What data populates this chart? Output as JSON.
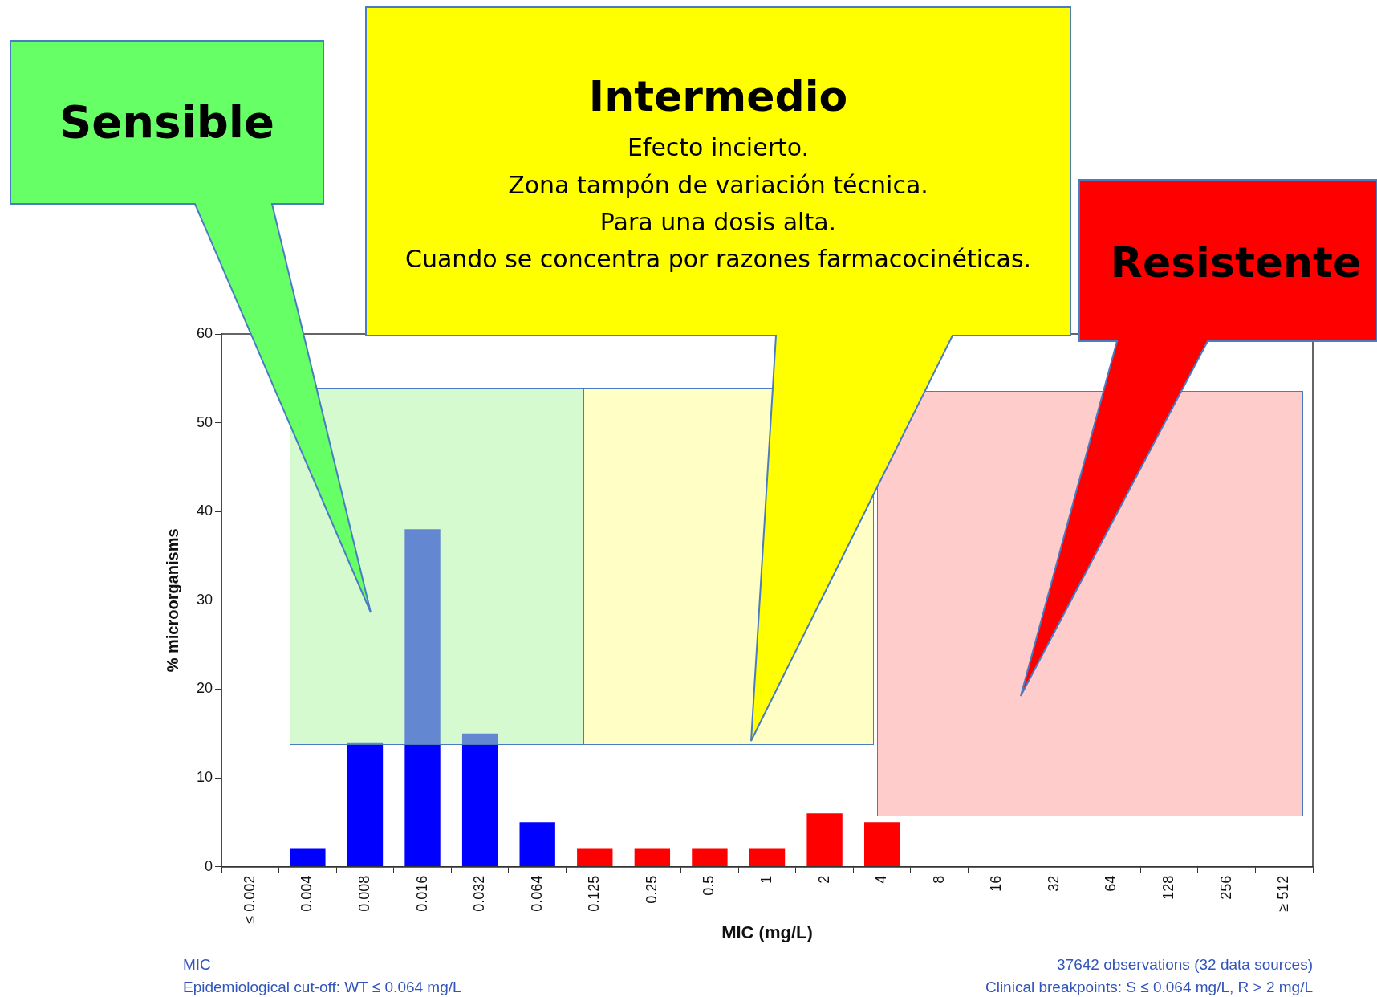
{
  "chart_data": {
    "type": "bar",
    "categories": [
      "≤ 0.002",
      "0.004",
      "0.008",
      "0.016",
      "0.032",
      "0.064",
      "0.125",
      "0.25",
      "0.5",
      "1",
      "2",
      "4",
      "8",
      "16",
      "32",
      "64",
      "128",
      "256",
      "≥ 512"
    ],
    "values": [
      0,
      2,
      14,
      38,
      15,
      5,
      2,
      2,
      2,
      2,
      6,
      5,
      0,
      0,
      0,
      0,
      0,
      0,
      0
    ],
    "colors": [
      "#0000ff",
      "#0000ff",
      "#0000ff",
      "#0000ff",
      "#0000ff",
      "#0000ff",
      "#ff0000",
      "#ff0000",
      "#ff0000",
      "#ff0000",
      "#ff0000",
      "#ff0000",
      "#ff0000",
      "#ff0000",
      "#ff0000",
      "#ff0000",
      "#ff0000",
      "#ff0000",
      "#ff0000"
    ],
    "xlabel": "MIC (mg/L)",
    "ylabel": "% microorganisms",
    "ylim": [
      0,
      60
    ],
    "yticks": [
      0,
      10,
      20,
      30,
      40,
      50,
      60
    ],
    "grid": false,
    "legend": false,
    "annotations": [
      "Sensible",
      "Intermedio",
      "Efecto incierto.",
      "Zona tampón de variación técnica.",
      "Para una dosis alta.",
      "Cuando se concentra por razones farmacocinéticas.",
      "Resistente",
      "MIC",
      "Epidemiological cut-off: WT ≤ 0.064 mg/L",
      "37642 observations (32 data sources)",
      "Clinical breakpoints: S ≤ 0.064 mg/L,  R > 2 mg/L"
    ]
  }
}
